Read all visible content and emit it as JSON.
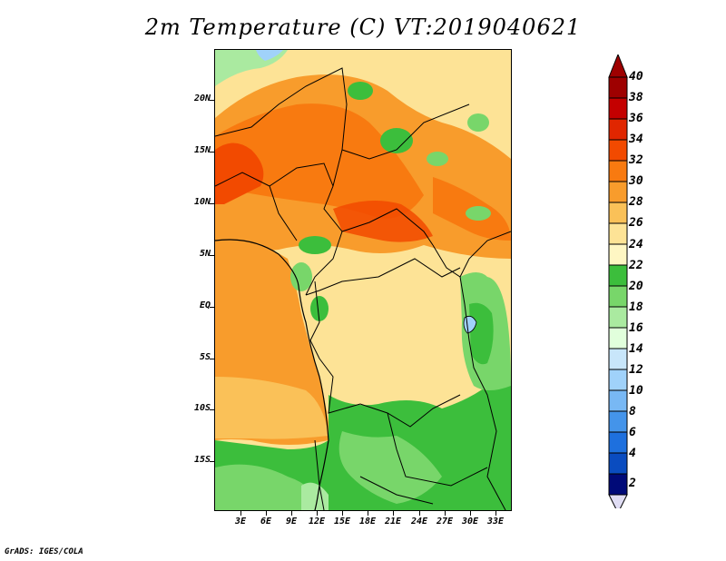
{
  "title": "2m Temperature (C) VT:2019040621",
  "map": {
    "variable": "2m Temperature",
    "units": "C",
    "valid_time": "2019040621",
    "lat_ticks": [
      "20N",
      "15N",
      "10N",
      "5N",
      "EQ",
      "5S",
      "10S",
      "15S"
    ],
    "lon_ticks": [
      "3E",
      "6E",
      "9E",
      "12E",
      "15E",
      "18E",
      "21E",
      "24E",
      "27E",
      "30E",
      "33E"
    ]
  },
  "colorbar": {
    "levels": [
      "40",
      "38",
      "36",
      "34",
      "32",
      "30",
      "28",
      "26",
      "24",
      "22",
      "20",
      "18",
      "16",
      "14",
      "12",
      "10",
      "8",
      "6",
      "4",
      "2"
    ],
    "colors": [
      "#9e0000",
      "#c40000",
      "#e02600",
      "#f24a00",
      "#f87a10",
      "#f89c2c",
      "#fac158",
      "#fde396",
      "#fef6c3",
      "#3cbe3c",
      "#78d66a",
      "#aaeaa0",
      "#e1ffdc",
      "#c8e6fa",
      "#a0d2fa",
      "#78b8f4",
      "#4494ea",
      "#1e70de",
      "#0a4cc0",
      "#000a78"
    ],
    "low_arrow_color": "#e0ddf4"
  },
  "footer": "GrADS: IGES/COLA"
}
